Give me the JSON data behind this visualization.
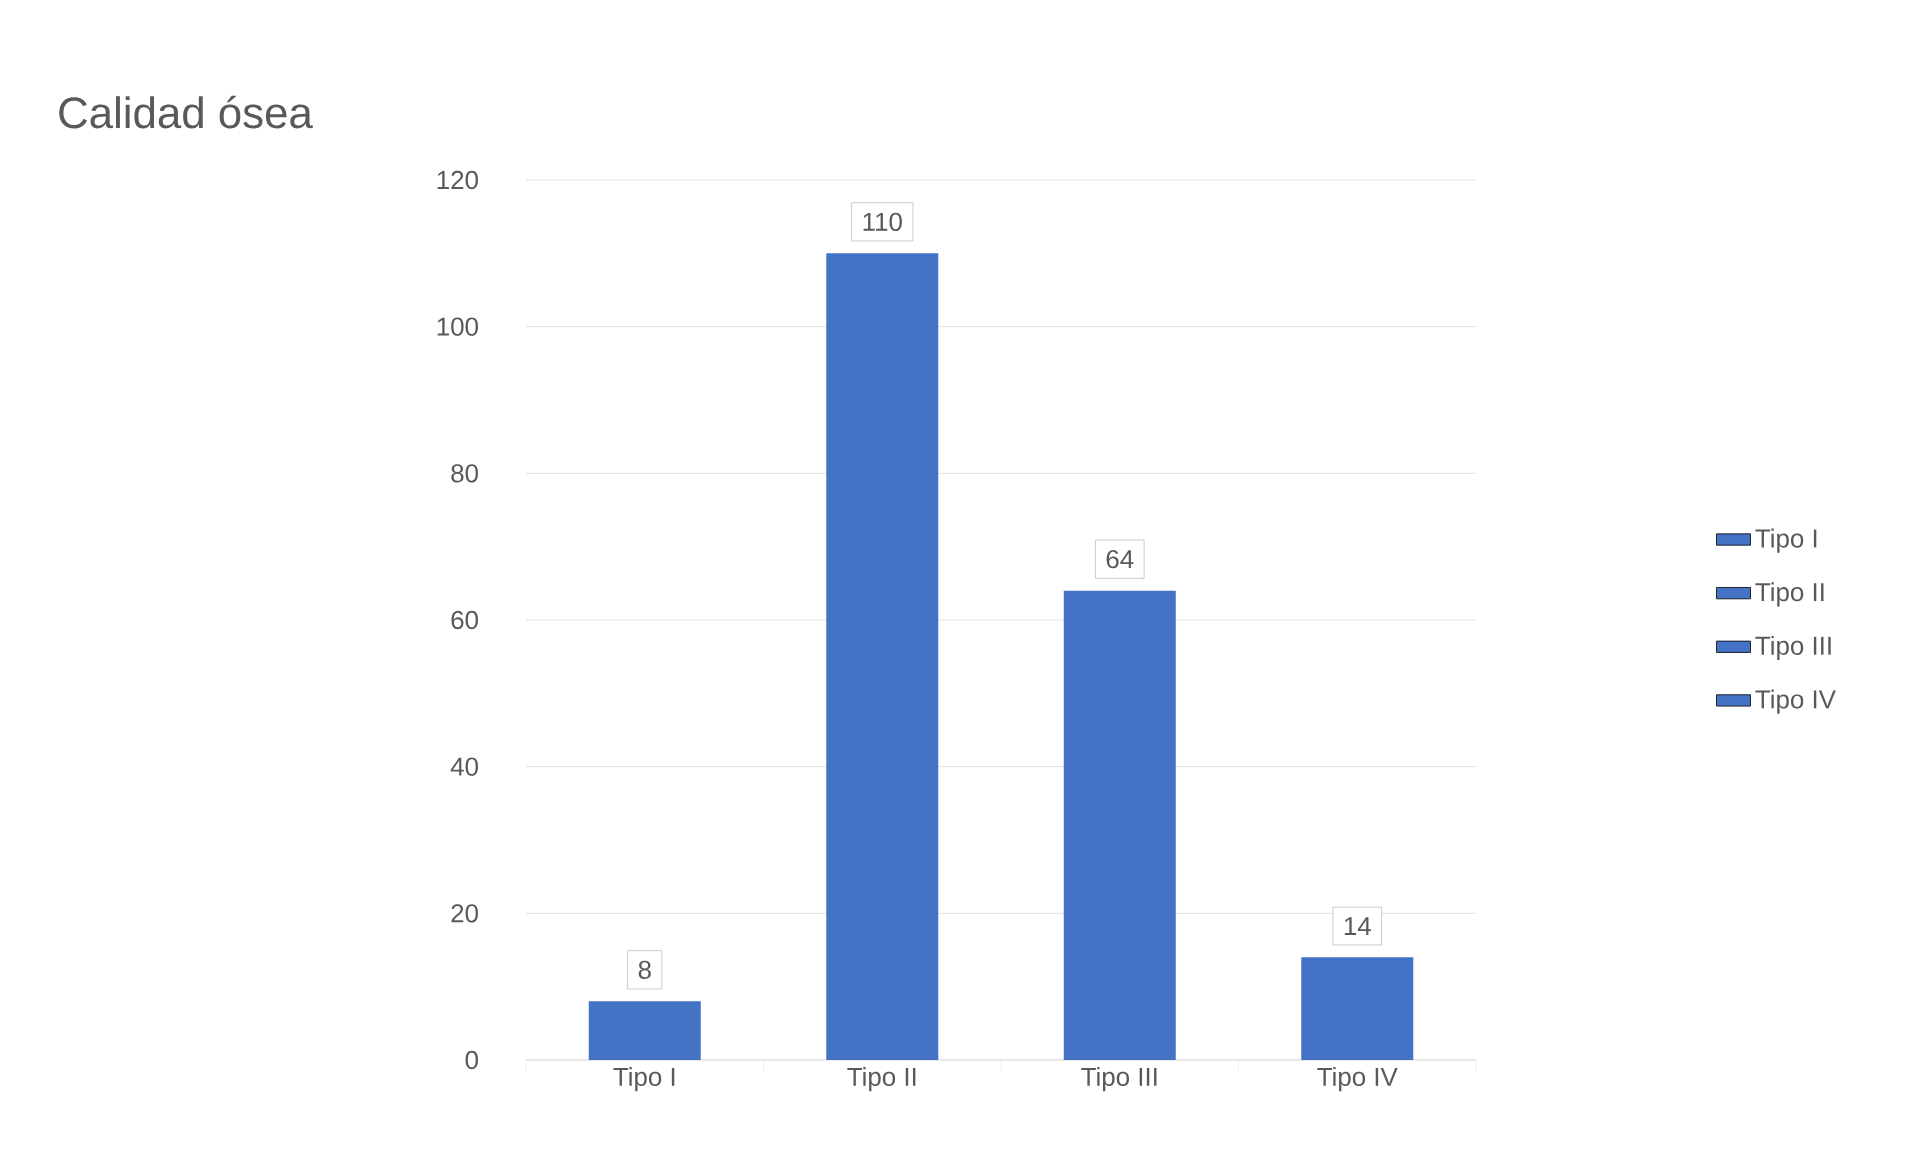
{
  "chart_data": {
    "type": "bar",
    "title": "Calidad ósea",
    "categories": [
      "Tipo I",
      "Tipo II",
      "Tipo III",
      "Tipo IV"
    ],
    "series": [
      {
        "name": "Tipo I",
        "color": "#4472c4",
        "values": [
          8,
          null,
          null,
          null
        ]
      },
      {
        "name": "Tipo II",
        "color": "#4472c4",
        "values": [
          null,
          110,
          null,
          null
        ]
      },
      {
        "name": "Tipo III",
        "color": "#4472c4",
        "values": [
          null,
          null,
          64,
          null
        ]
      },
      {
        "name": "Tipo IV",
        "color": "#4472c4",
        "values": [
          null,
          null,
          null,
          14
        ]
      }
    ],
    "stacked": true,
    "ylim": [
      0,
      120
    ],
    "yticks": [
      0,
      20,
      40,
      60,
      80,
      100,
      120
    ],
    "grid": "y",
    "data_labels": true,
    "legend": "right"
  }
}
